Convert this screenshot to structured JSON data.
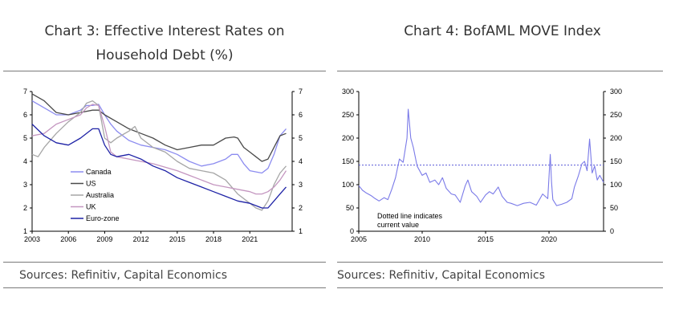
{
  "colors": {
    "canada": "#8c8cf0",
    "us": "#4a4a4a",
    "australia": "#a6a6a6",
    "uk": "#c496c0",
    "euro": "#1e22a6",
    "move": "#7a7ae8",
    "dotted": "#5a5ad8",
    "axis": "#000000",
    "rule": "#7a7a7a"
  },
  "left_panel": {
    "title_line1": "Chart 3: Effective Interest Rates on",
    "title_line2": "Household Debt (%)",
    "source": "Sources: Refinitiv, Capital Economics"
  },
  "right_panel": {
    "title": "Chart 4: BofAML MOVE Index",
    "source": "Sources: Refinitiv, Capital Economics",
    "annotation_line1": "Dotted line indicates",
    "annotation_line2": "current value"
  },
  "chart_data": [
    {
      "type": "line",
      "title": "Chart 3: Effective Interest Rates on Household Debt (%)",
      "x_ticks": [
        "2003",
        "2006",
        "2009",
        "2012",
        "2015",
        "2018",
        "2021"
      ],
      "y_ticks": [
        "1",
        "2",
        "3",
        "4",
        "5",
        "6",
        "7"
      ],
      "y_ticks_right": [
        "1",
        "2",
        "3",
        "4",
        "5",
        "6",
        "7"
      ],
      "xlim": [
        2003,
        2024.5
      ],
      "ylim": [
        1,
        7
      ],
      "legend": "lower-left",
      "series": [
        {
          "name": "Canada",
          "color_key": "canada",
          "x": [
            2003,
            2004,
            2005,
            2006,
            2007,
            2007.5,
            2008,
            2008.5,
            2009,
            2009.5,
            2010,
            2011,
            2012,
            2013,
            2014,
            2015,
            2016,
            2017,
            2018,
            2019,
            2019.5,
            2020,
            2020.5,
            2021,
            2022,
            2022.5,
            2023,
            2023.5,
            2024
          ],
          "y": [
            6.6,
            6.3,
            6.0,
            6.0,
            6.2,
            6.4,
            6.4,
            6.45,
            6.0,
            5.6,
            5.3,
            4.9,
            4.7,
            4.6,
            4.5,
            4.3,
            4.0,
            3.8,
            3.9,
            4.1,
            4.3,
            4.3,
            3.9,
            3.6,
            3.5,
            3.7,
            4.3,
            5.1,
            5.4
          ]
        },
        {
          "name": "US",
          "color_key": "us",
          "x": [
            2003,
            2004,
            2005,
            2006,
            2007,
            2008,
            2008.5,
            2009,
            2010,
            2011,
            2012,
            2013,
            2014,
            2015,
            2016,
            2017,
            2018,
            2019,
            2019.7,
            2020,
            2020.5,
            2021,
            2021.5,
            2022,
            2022.5,
            2023,
            2023.5,
            2024
          ],
          "y": [
            6.9,
            6.6,
            6.1,
            6.0,
            6.1,
            6.2,
            6.2,
            6.0,
            5.7,
            5.4,
            5.2,
            5.0,
            4.7,
            4.5,
            4.6,
            4.7,
            4.7,
            5.0,
            5.05,
            5.0,
            4.6,
            4.4,
            4.2,
            4.0,
            4.1,
            4.6,
            5.1,
            5.2
          ]
        },
        {
          "name": "Australia",
          "color_key": "australia",
          "x": [
            2003,
            2003.5,
            2004,
            2005,
            2006,
            2007,
            2007.5,
            2008,
            2008.5,
            2009,
            2009.5,
            2010,
            2011,
            2011.5,
            2012,
            2013,
            2014,
            2015,
            2016,
            2017,
            2018,
            2019,
            2020,
            2021,
            2021.5,
            2022,
            2022.5,
            2023,
            2023.5,
            2024
          ],
          "y": [
            4.3,
            4.2,
            4.6,
            5.2,
            5.7,
            6.1,
            6.5,
            6.6,
            6.4,
            5.0,
            4.8,
            5.0,
            5.3,
            5.5,
            5.0,
            4.6,
            4.4,
            4.0,
            3.7,
            3.6,
            3.5,
            3.2,
            2.6,
            2.2,
            2.0,
            1.9,
            2.3,
            3.0,
            3.5,
            3.8
          ]
        },
        {
          "name": "UK",
          "color_key": "uk",
          "x": [
            2003,
            2004,
            2005,
            2006,
            2007,
            2007.5,
            2008,
            2008.5,
            2009,
            2009.5,
            2010,
            2011,
            2012,
            2013,
            2014,
            2015,
            2016,
            2017,
            2018,
            2019,
            2020,
            2021,
            2021.5,
            2022,
            2022.5,
            2023,
            2023.5,
            2024
          ],
          "y": [
            5.1,
            5.2,
            5.6,
            5.8,
            6.0,
            6.3,
            6.45,
            6.4,
            5.5,
            4.4,
            4.2,
            4.1,
            4.0,
            3.9,
            3.75,
            3.6,
            3.4,
            3.2,
            3.0,
            2.9,
            2.8,
            2.7,
            2.6,
            2.6,
            2.7,
            2.9,
            3.2,
            3.6
          ]
        },
        {
          "name": "Euro-zone",
          "color_key": "euro",
          "x": [
            2003,
            2004,
            2005,
            2006,
            2007,
            2008,
            2008.5,
            2009,
            2009.5,
            2010,
            2011,
            2012,
            2013,
            2014,
            2015,
            2016,
            2017,
            2018,
            2019,
            2020,
            2021,
            2022,
            2022.5,
            2023,
            2023.5,
            2024
          ],
          "y": [
            5.6,
            5.1,
            4.8,
            4.7,
            5.0,
            5.4,
            5.4,
            4.7,
            4.3,
            4.2,
            4.3,
            4.1,
            3.8,
            3.6,
            3.3,
            3.1,
            2.9,
            2.7,
            2.5,
            2.3,
            2.2,
            2.0,
            2.0,
            2.3,
            2.6,
            2.9
          ]
        }
      ]
    },
    {
      "type": "line",
      "title": "Chart 4: BofAML MOVE Index",
      "x_ticks": [
        "2005",
        "2010",
        "2015",
        "2020"
      ],
      "y_ticks": [
        "0",
        "50",
        "100",
        "150",
        "200",
        "250",
        "300"
      ],
      "y_ticks_right": [
        "0",
        "50",
        "100",
        "150",
        "200",
        "250",
        "300"
      ],
      "xlim": [
        2005,
        2024.3
      ],
      "ylim": [
        0,
        300
      ],
      "current_value_line": 142,
      "series": [
        {
          "name": "",
          "color_key": "move",
          "x": [
            2005,
            2005.3,
            2005.6,
            2006,
            2006.3,
            2006.6,
            2007,
            2007.3,
            2007.6,
            2007.9,
            2008.2,
            2008.5,
            2008.8,
            2008.9,
            2009.1,
            2009.3,
            2009.6,
            2010,
            2010.3,
            2010.6,
            2011,
            2011.3,
            2011.6,
            2011.9,
            2012.3,
            2012.6,
            2013,
            2013.4,
            2013.6,
            2013.9,
            2014.3,
            2014.6,
            2015,
            2015.3,
            2015.6,
            2016,
            2016.3,
            2016.7,
            2017,
            2017.5,
            2018,
            2018.5,
            2019,
            2019.5,
            2019.9,
            2020.1,
            2020.2,
            2020.3,
            2020.6,
            2021,
            2021.4,
            2021.8,
            2022,
            2022.3,
            2022.6,
            2022.8,
            2023,
            2023.2,
            2023.4,
            2023.6,
            2023.8,
            2024,
            2024.3
          ],
          "y": [
            98,
            88,
            82,
            76,
            70,
            65,
            72,
            68,
            90,
            115,
            155,
            148,
            200,
            262,
            200,
            180,
            140,
            120,
            125,
            105,
            110,
            100,
            115,
            92,
            80,
            78,
            62,
            98,
            110,
            85,
            75,
            62,
            78,
            85,
            80,
            95,
            75,
            62,
            60,
            55,
            60,
            62,
            56,
            80,
            70,
            165,
            105,
            68,
            55,
            58,
            62,
            70,
            95,
            118,
            145,
            150,
            130,
            198,
            125,
            140,
            110,
            120,
            105
          ]
        }
      ]
    }
  ]
}
